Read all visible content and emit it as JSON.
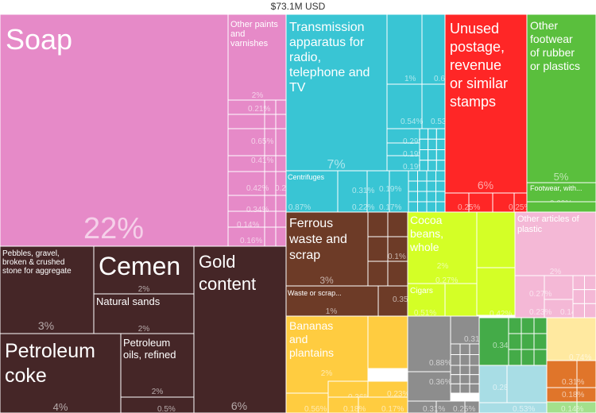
{
  "chart_data": {
    "type": "treemap",
    "title": "$73.1M USD",
    "colors": {
      "pink": "#e68ac8",
      "dark_brown": "#452627",
      "cyan": "#39c5d4",
      "red": "#ff2626",
      "green": "#5abf3d",
      "brown": "#6d3b27",
      "lime": "#d4ff26",
      "light_pink": "#f4b8d6",
      "yellow": "#ffcc40",
      "gray": "#8d8d8d",
      "dark_green": "#44ab48",
      "light_blue": "#a8dde5",
      "light_yellow": "#ffe9a0",
      "orange": "#e0752a",
      "light_green": "#a3e08c"
    },
    "labeled_items": [
      {
        "label": "Soap",
        "share": "22%",
        "color": "pink"
      },
      {
        "label": "Other paints and varnishes",
        "share": "2%",
        "color": "pink"
      },
      {
        "label": "Transmission apparatus for radio, telephone and TV",
        "share": "7%",
        "color": "cyan"
      },
      {
        "label": "Centrifuges",
        "share": "0.87%",
        "color": "cyan"
      },
      {
        "label": "Unused postage, revenue or similar stamps",
        "share": "6%",
        "color": "red"
      },
      {
        "label": "Other footwear of rubber or plastics",
        "share": "5%",
        "color": "green"
      },
      {
        "label": "Footwear, with...",
        "share": "0.69%",
        "color": "green"
      },
      {
        "label": "Pebbles, gravel, broken & crushed stone for aggregate",
        "share": "3%",
        "color": "dark_brown"
      },
      {
        "label": "Cemen",
        "share": "2%",
        "color": "dark_brown"
      },
      {
        "label": "Natural sands",
        "share": "2%",
        "color": "dark_brown"
      },
      {
        "label": "Gold content",
        "share": "6%",
        "color": "dark_brown"
      },
      {
        "label": "Petroleum coke",
        "share": "4%",
        "color": "dark_brown"
      },
      {
        "label": "Petroleum oils, refined",
        "share": "2%",
        "color": "dark_brown"
      },
      {
        "label": "Ferrous waste and scrap",
        "share": "3%",
        "color": "brown"
      },
      {
        "label": "Waste or scrap...",
        "share": "1%",
        "color": "brown"
      },
      {
        "label": "Cocoa beans, whole",
        "share": "2%",
        "color": "lime"
      },
      {
        "label": "Cigars",
        "share": "0.51%",
        "color": "lime"
      },
      {
        "label": "Other articles of plastic",
        "share": "2%",
        "color": "light_pink"
      },
      {
        "label": "Bananas and plantains",
        "share": "2%",
        "color": "yellow"
      }
    ],
    "unlabeled_shares": [
      "0.21%",
      "0.65%",
      "0.41%",
      "0.42%",
      "0.24%",
      "0.34%",
      "0.14%",
      "0.16%",
      "1%",
      "0.63%",
      "0.54%",
      "0.53%",
      "0.29%",
      "0.19%",
      "0.19%",
      "0.12%",
      "0.31%",
      "0.22%",
      "0.17%",
      "0.19%",
      "0.25%",
      "0.25%",
      "0.5%",
      "0.1%",
      "0.35%",
      "0.27%",
      "0.1%",
      "0.42%",
      "0.19%",
      "0.16%",
      "0.27%",
      "0.23%",
      "0.14%",
      "1%",
      "0.36%",
      "0.23%",
      "0.56%",
      "0.18%",
      "0.17%",
      "0.88%",
      "0.31%",
      "0.36%",
      "0.31%",
      "0.25%",
      "0.34%",
      "0.18%",
      "0.28%",
      "0.53%",
      "0.74%",
      "0.31%",
      "0.18%",
      "0.14%"
    ]
  }
}
